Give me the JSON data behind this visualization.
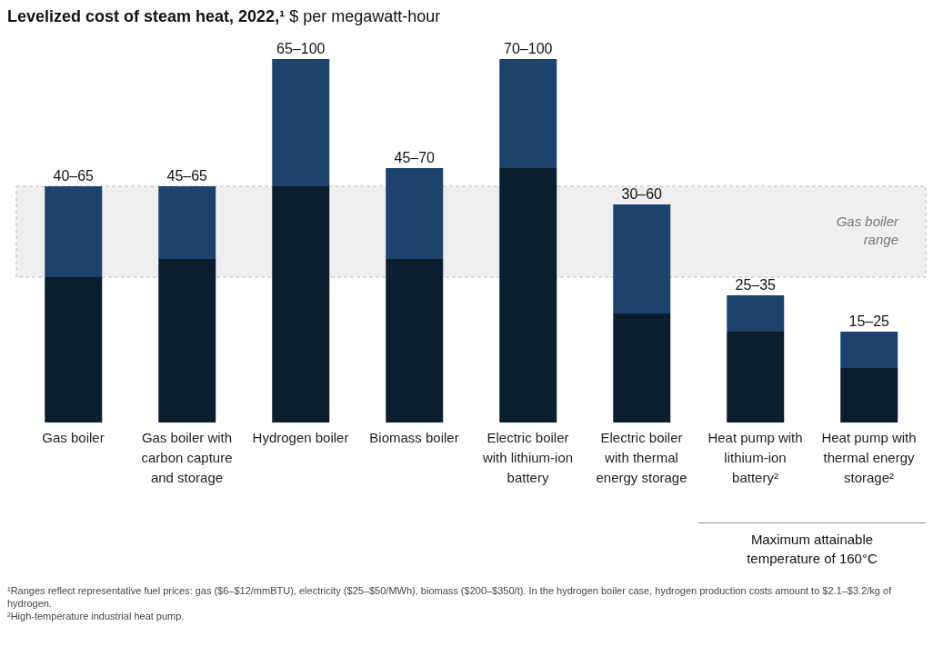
{
  "chart_data": {
    "type": "bar",
    "stacked": true,
    "title": "Levelized cost of steam heat, 2022,¹",
    "subtitle": "$ per megawatt-hour",
    "categories": [
      "Gas boiler",
      "Gas boiler with carbon capture and storage",
      "Hydrogen boiler",
      "Biomass boiler",
      "Electric boiler with lithium-ion battery",
      "Electric boiler with thermal energy storage",
      "Heat pump with lithium-ion battery²",
      "Heat pump with thermal energy storage²"
    ],
    "series": [
      {
        "color": "#0a1e30",
        "values": [
          40,
          45,
          65,
          45,
          70,
          30,
          25,
          15
        ]
      },
      {
        "color": "#1d436c",
        "values": [
          25,
          20,
          35,
          25,
          30,
          30,
          10,
          10
        ],
        "value_labels": [
          "40–65",
          "45–65",
          "65–100",
          "45–70",
          "70–100",
          "30–60",
          "25–35",
          "15–25"
        ]
      }
    ],
    "bands": [
      {
        "axis": "y",
        "from": 40,
        "to": 65,
        "label": "Gas boiler range",
        "color": "#efefef"
      }
    ],
    "grid": false,
    "legend": false,
    "annotations": [
      "Maximum attainable temperature of 160°C",
      "¹Ranges reflect representative fuel prices: gas ($6–$12/mmBTU), electricity ($25–$50/MWh), biomass ($200–$350/t). In the hydrogen boiler case, hydrogen production costs amount to $2.1–$3.2/kg of hydrogen.",
      "²High-temperature industrial heat pump."
    ]
  }
}
